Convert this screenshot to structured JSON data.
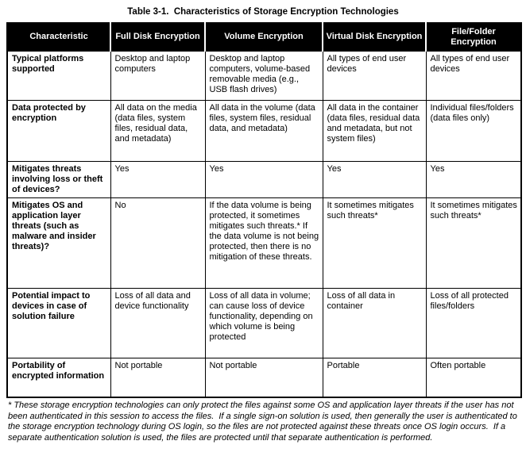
{
  "title": "Table 3-1.  Characteristics of Storage Encryption Technologies",
  "table": {
    "columns": [
      "Characteristic",
      "Full Disk Encryption",
      "Volume Encryption",
      "Virtual Disk Encryption",
      "File/Folder Encryption"
    ],
    "rows": [
      {
        "characteristic": "Typical platforms supported",
        "cells": [
          "Desktop and laptop computers",
          "Desktop and laptop computers, volume-based removable media (e.g., USB flash drives)",
          "All types of end user devices",
          "All types of end user devices"
        ]
      },
      {
        "characteristic": "Data protected by encryption",
        "cells": [
          "All data on the media (data files, system files, residual data, and metadata)",
          "All data in the volume (data files, system files, residual data, and metadata)",
          "All data in the container (data files, residual data and metadata, but not system files)",
          "Individual files/folders (data files only)"
        ]
      },
      {
        "characteristic": "Mitigates threats involving loss or theft of devices?",
        "cells": [
          "Yes",
          "Yes",
          "Yes",
          "Yes"
        ]
      },
      {
        "characteristic": "Mitigates OS and application layer threats (such as malware and insider threats)?",
        "cells": [
          "No",
          "If the data volume is being protected, it sometimes mitigates such threats.* If the data volume is not being protected, then there is no mitigation of these threats.",
          "It sometimes mitigates such threats*",
          "It sometimes mitigates such threats*"
        ]
      },
      {
        "characteristic": "Potential impact to devices in case of solution failure",
        "cells": [
          "Loss of all data and device functionality",
          "Loss of all data in volume; can cause loss of device functionality, depending on which volume is being protected",
          "Loss of all data in container",
          "Loss of all protected files/folders"
        ]
      },
      {
        "characteristic": "Portability of encrypted information",
        "cells": [
          "Not portable",
          "Not portable",
          "Portable",
          "Often portable"
        ]
      }
    ]
  },
  "footnote": "* These storage encryption technologies can only protect the files against some OS and application layer threats if the user has not been authenticated in this session to access the files.  If a single sign-on solution is used, then generally the user is authenticated to the storage encryption technology during OS login, so the files are not protected against these threats once OS login occurs.  If a separate authentication solution is used, the files are protected until that separate authentication is performed."
}
